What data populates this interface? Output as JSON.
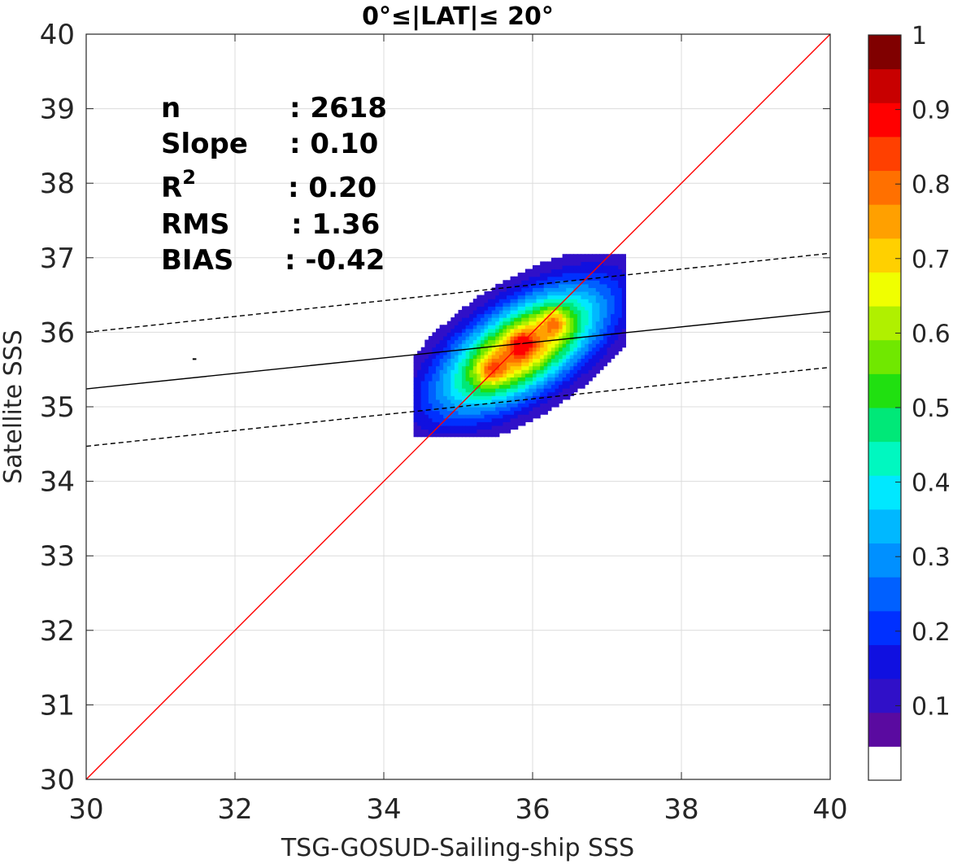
{
  "chart_data": {
    "type": "contour",
    "title": "0°≤|LAT|≤ 20°",
    "xlabel": "TSG-GOSUD-Sailing-ship SSS",
    "ylabel": "Satellite SSS",
    "xlim": [
      30,
      40
    ],
    "ylim": [
      30,
      40
    ],
    "xticks": [
      "30",
      "32",
      "34",
      "36",
      "38",
      "40"
    ],
    "yticks": [
      "30",
      "31",
      "32",
      "33",
      "34",
      "35",
      "36",
      "37",
      "38",
      "39",
      "40"
    ],
    "grid": true,
    "stats": [
      {
        "label": "n",
        "value": ": 2618"
      },
      {
        "label": "Slope",
        "value": ": 0.10"
      },
      {
        "label": "R",
        "sup": "2",
        "value": ": 0.20"
      },
      {
        "label": "RMS",
        "value": ": 1.36"
      },
      {
        "label": "BIAS",
        "value": ": -0.42"
      }
    ],
    "lines": {
      "identity": {
        "color": "#ff0000",
        "points": [
          [
            30,
            30
          ],
          [
            40,
            40
          ]
        ]
      },
      "fit": {
        "color": "#000000",
        "points": [
          [
            30,
            35.24
          ],
          [
            40,
            36.28
          ]
        ]
      },
      "fit_upper": {
        "color": "#000000",
        "style": "dashed",
        "points": [
          [
            30,
            36.0
          ],
          [
            40,
            37.06
          ]
        ]
      },
      "fit_lower": {
        "color": "#000000",
        "style": "dashed",
        "points": [
          [
            30,
            34.47
          ],
          [
            40,
            35.53
          ]
        ]
      }
    },
    "density": {
      "center": [
        35.85,
        35.78
      ],
      "angle_deg": 33,
      "sigma_major": 0.85,
      "sigma_minor": 0.38,
      "levels": [
        0.05,
        0.1,
        0.15,
        0.2,
        0.25,
        0.3,
        0.35,
        0.4,
        0.45,
        0.5,
        0.55,
        0.6,
        0.65,
        0.7,
        0.75,
        0.8,
        0.85,
        0.9
      ],
      "peaks": [
        [
          35.45,
          35.5
        ],
        [
          35.85,
          35.85
        ],
        [
          36.3,
          36.15
        ]
      ]
    },
    "colorbar": {
      "range": [
        0,
        1
      ],
      "ticks": [
        "0.1",
        "0.2",
        "0.3",
        "0.4",
        "0.5",
        "0.6",
        "0.7",
        "0.8",
        "0.9",
        "1"
      ],
      "colors": [
        "#ffffff",
        "#5a0aa0",
        "#3010c8",
        "#1010e0",
        "#0030ff",
        "#0060ff",
        "#0090ff",
        "#00b8ff",
        "#00e8ff",
        "#00f8c0",
        "#00e878",
        "#20e010",
        "#70e800",
        "#b0f000",
        "#f0ff00",
        "#ffd000",
        "#ffa000",
        "#ff7000",
        "#ff4000",
        "#ff0000",
        "#c80000",
        "#800000"
      ]
    }
  }
}
